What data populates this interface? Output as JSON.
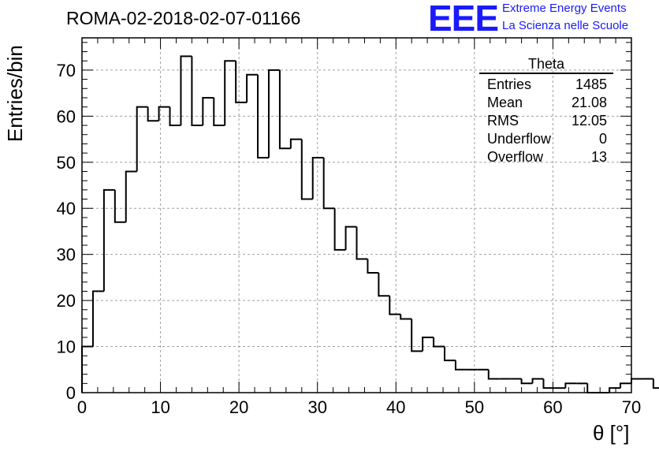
{
  "header": {
    "title": "ROMA-02-2018-02-07-01166",
    "logo_text": "EEE",
    "logo_line1": "Extreme Energy Events",
    "logo_line2": "La Scienza nelle Scuole"
  },
  "stats_box": {
    "name": "Theta",
    "rows": [
      {
        "label": "Entries",
        "value": "1485"
      },
      {
        "label": "Mean",
        "value": "21.08"
      },
      {
        "label": "RMS",
        "value": "12.05"
      },
      {
        "label": "Underflow",
        "value": "0"
      },
      {
        "label": "Overflow",
        "value": "13"
      }
    ]
  },
  "colors": {
    "line": "#000000",
    "grid": "#a0a0a0",
    "logo": "#1a1aff"
  },
  "chart_data": {
    "type": "bar",
    "histogram": true,
    "xlabel": "θ [°]",
    "ylabel": "Entries/bin",
    "xlim": [
      0,
      70
    ],
    "ylim": [
      0,
      77
    ],
    "bin_width": 1.4,
    "x_ticks": [
      "0",
      "10",
      "20",
      "30",
      "40",
      "50",
      "60",
      "70"
    ],
    "y_ticks": [
      "0",
      "10",
      "20",
      "30",
      "40",
      "50",
      "60",
      "70"
    ],
    "grid": true,
    "values": [
      10,
      22,
      44,
      37,
      48,
      62,
      59,
      62,
      58,
      73,
      58,
      64,
      58,
      72,
      63,
      69,
      51,
      70,
      53,
      55,
      42,
      51,
      40,
      31,
      36,
      29,
      26,
      21,
      17,
      16,
      9,
      12,
      10,
      7,
      5,
      5,
      5,
      3,
      3,
      3,
      2,
      3,
      1,
      1,
      2,
      2,
      0,
      0,
      1,
      2,
      3,
      3,
      1
    ]
  }
}
